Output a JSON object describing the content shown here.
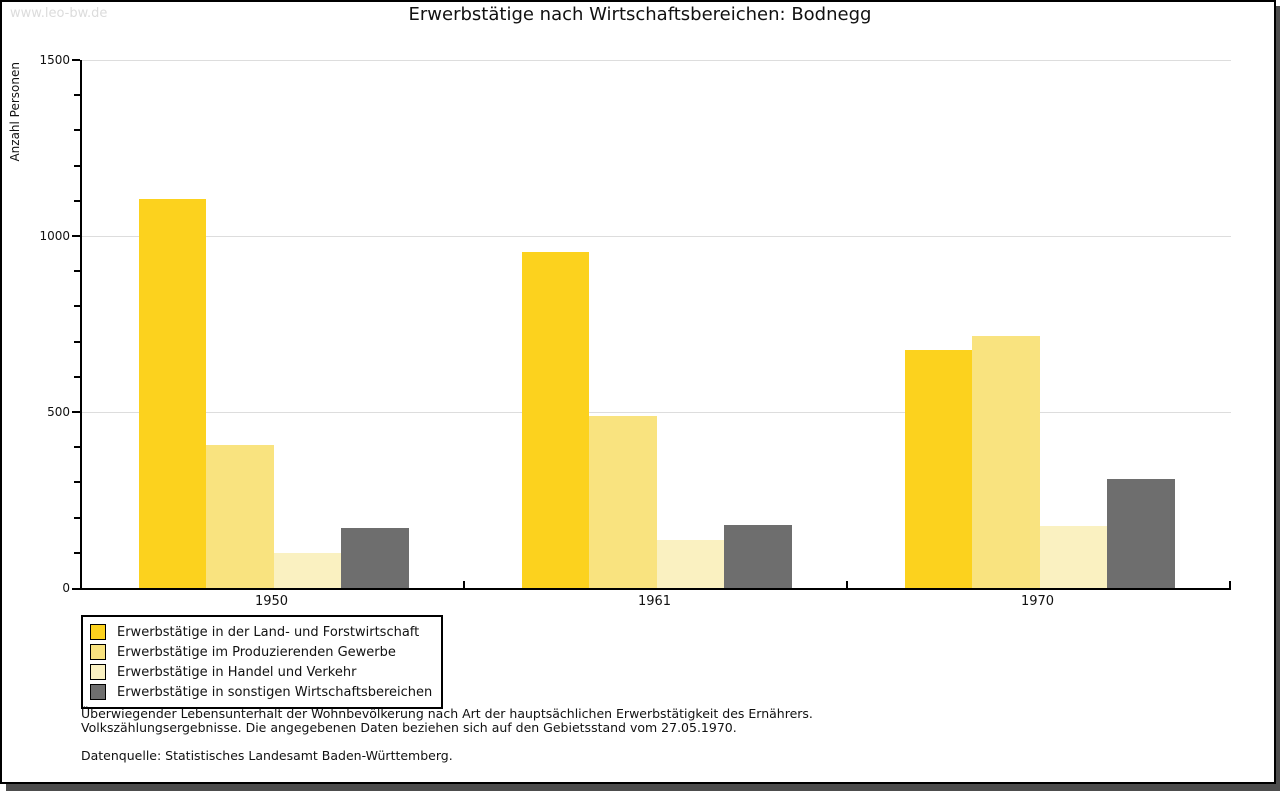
{
  "watermark": "www.leo-bw.de",
  "title": "Erwerbstätige nach Wirtschaftsbereichen: Bodnegg",
  "footnotes": {
    "line1": "Überwiegender Lebensunterhalt der Wohnbevölkerung nach Art der hauptsächlichen Erwerbstätigkeit des Ernährers.",
    "line2": "Volkszählungsergebnisse. Die angegebenen Daten beziehen sich auf den Gebietsstand vom 27.05.1970.",
    "source": "Datenquelle: Statistisches Landesamt Baden-Württemberg."
  },
  "chart_data": {
    "type": "bar",
    "title": "Erwerbstätige nach Wirtschaftsbereichen: Bodnegg",
    "xlabel": "",
    "ylabel": "Anzahl Personen",
    "categories": [
      "1950",
      "1961",
      "1970"
    ],
    "series": [
      {
        "name": "Erwerbstätige in der Land- und Forstwirtschaft",
        "color": "#fcd21e",
        "values": [
          1105,
          955,
          675
        ]
      },
      {
        "name": "Erwerbstätige im Produzierenden Gewerbe",
        "color": "#f9e37f",
        "values": [
          405,
          490,
          715
        ]
      },
      {
        "name": "Erwerbstätige in Handel und Verkehr",
        "color": "#faf1c1",
        "values": [
          100,
          135,
          175
        ]
      },
      {
        "name": "Erwerbstätige in sonstigen Wirtschaftsbereichen",
        "color": "#6e6e6e",
        "values": [
          170,
          180,
          310
        ]
      }
    ],
    "ylim": [
      0,
      1500
    ],
    "y_major_step": 500,
    "y_minor_step": 100,
    "grid": "horizontal-major-lines",
    "gridline_color": "#dddddd",
    "legend_position": "bottom-left"
  }
}
